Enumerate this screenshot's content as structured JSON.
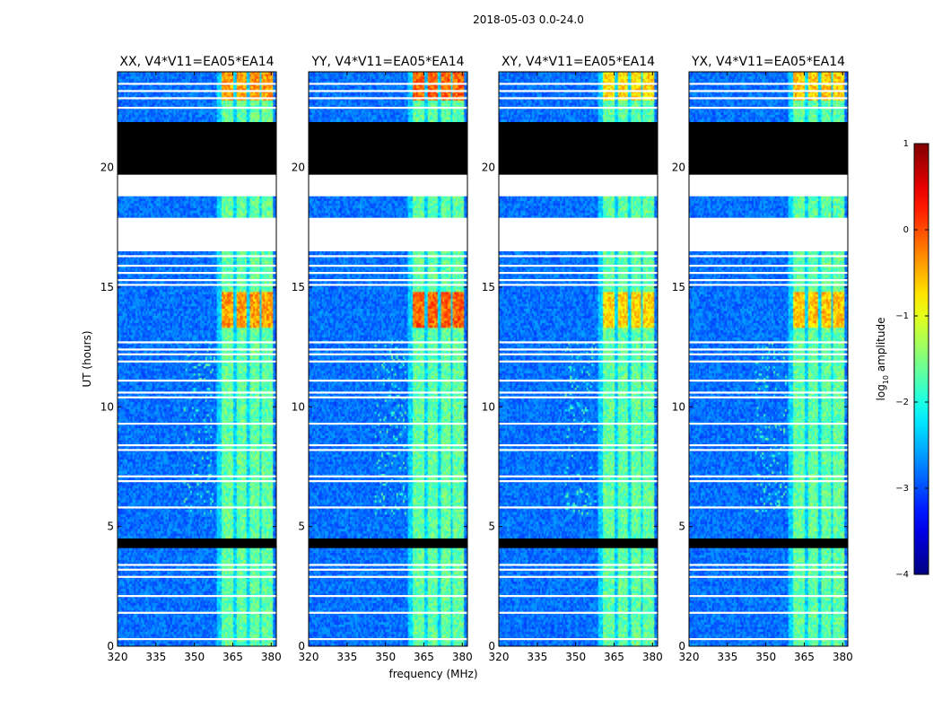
{
  "chart_data": {
    "type": "heatmap",
    "suptitle": "2018-05-03 0.0-24.0",
    "xlabel": "frequency (MHz)",
    "ylabel": "UT (hours)",
    "xlim": [
      320,
      382
    ],
    "ylim": [
      0,
      24
    ],
    "xticks": [
      320,
      335,
      350,
      365,
      380
    ],
    "yticks": [
      0,
      5,
      10,
      15,
      20
    ],
    "panels": [
      {
        "title": "XX, V4*V11=EA05*EA14",
        "polarization": "XX",
        "bright_band_mhz": [
          359,
          381
        ],
        "peak_log10_amplitude": 0.0
      },
      {
        "title": "YY, V4*V11=EA05*EA14",
        "polarization": "YY",
        "bright_band_mhz": [
          359,
          381
        ],
        "peak_log10_amplitude": 0.3
      },
      {
        "title": "XY, V4*V11=EA05*EA14",
        "polarization": "XY",
        "bright_band_mhz": [
          359,
          381
        ],
        "peak_log10_amplitude": -0.3
      },
      {
        "title": "YX, V4*V11=EA05*EA14",
        "polarization": "YX",
        "bright_band_mhz": [
          359,
          381
        ],
        "peak_log10_amplitude": -0.2
      }
    ],
    "channel_groups_mhz": [
      [
        361,
        365.5
      ],
      [
        366.5,
        370.5
      ],
      [
        371.5,
        375.5
      ],
      [
        376.5,
        380.5
      ]
    ],
    "blank_ut_ranges": [
      [
        16.5,
        17.9
      ],
      [
        18.8,
        19.7
      ]
    ],
    "black_ut_ranges": [
      [
        4.1,
        4.5
      ],
      [
        19.4,
        21.9
      ]
    ],
    "line_ut": [
      0.3,
      1.4,
      2.1,
      2.9,
      3.2,
      3.4,
      5.8,
      6.9,
      7.1,
      8.2,
      8.4,
      9.3,
      10.4,
      10.6,
      11.1,
      11.9,
      12.2,
      12.4,
      12.7,
      15.1,
      15.3,
      15.6,
      15.9,
      16.3,
      22.5,
      22.9,
      23.2,
      23.5
    ],
    "colorbar": {
      "label": "log10 amplitude",
      "label_main": "log",
      "label_sub": "10",
      "label_rest": " amplitude",
      "range": [
        -4,
        1
      ],
      "ticks": [
        "1",
        "0",
        "−1",
        "−2",
        "−3",
        "−4"
      ],
      "colormap": "jet"
    }
  }
}
